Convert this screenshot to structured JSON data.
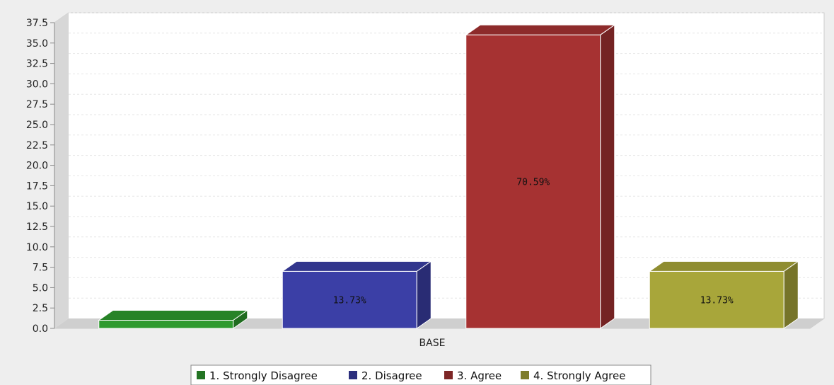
{
  "chart_data": {
    "type": "bar",
    "title": "",
    "xlabel": "",
    "ylabel": "",
    "categories": [
      "BASE"
    ],
    "ylim": [
      0,
      37.5
    ],
    "yticks": [
      "0.0",
      "2.5",
      "5.0",
      "7.5",
      "10.0",
      "12.5",
      "15.0",
      "17.5",
      "20.0",
      "22.5",
      "25.0",
      "27.5",
      "30.0",
      "32.5",
      "35.0",
      "37.5"
    ],
    "grid": true,
    "legend_position": "bottom-center",
    "series": [
      {
        "name": "1. Strongly Disagree",
        "values": [
          1
        ],
        "label": "",
        "color": "#2e9a2e"
      },
      {
        "name": "2. Disagree",
        "values": [
          7
        ],
        "label": "13.73%",
        "color": "#3b3fa6"
      },
      {
        "name": "3. Agree",
        "values": [
          36
        ],
        "label": "70.59%",
        "color": "#a63232"
      },
      {
        "name": "4. Strongly Agree",
        "values": [
          7
        ],
        "label": "13.73%",
        "color": "#a8a63a"
      }
    ]
  }
}
